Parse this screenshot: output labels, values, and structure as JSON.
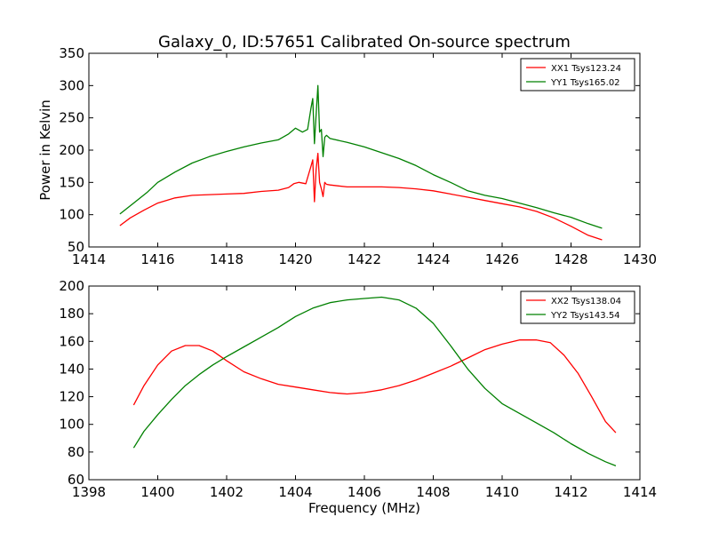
{
  "figure": {
    "title": "Galaxy_0, ID:57651 Calibrated On-source spectrum"
  },
  "chart_data": [
    {
      "type": "line",
      "title": "Galaxy_0, ID:57651 Calibrated On-source spectrum",
      "xlabel": "",
      "ylabel": "Power in Kelvin",
      "xlim": [
        1414,
        1430
      ],
      "ylim": [
        50,
        350
      ],
      "xticks": [
        1414,
        1416,
        1418,
        1420,
        1422,
        1424,
        1426,
        1428,
        1430
      ],
      "yticks": [
        50,
        100,
        150,
        200,
        250,
        300,
        350
      ],
      "legend": "top-right",
      "series": [
        {
          "name": "XX1 Tsys123.24",
          "color": "#ff0000",
          "x": [
            1414.9,
            1415.2,
            1415.6,
            1416.0,
            1416.5,
            1417.0,
            1417.5,
            1418.0,
            1418.5,
            1419.0,
            1419.5,
            1419.8,
            1419.95,
            1420.1,
            1420.3,
            1420.45,
            1420.5,
            1420.55,
            1420.6,
            1420.65,
            1420.7,
            1420.75,
            1420.8,
            1420.85,
            1420.9,
            1421.0,
            1421.5,
            1422.0,
            1422.5,
            1423.0,
            1423.5,
            1424.0,
            1424.5,
            1425.0,
            1425.5,
            1426.0,
            1426.5,
            1427.0,
            1427.5,
            1428.0,
            1428.5,
            1428.9
          ],
          "y": [
            83,
            95,
            107,
            118,
            126,
            130,
            131,
            132,
            133,
            136,
            138,
            142,
            148,
            150,
            148,
            175,
            185,
            120,
            170,
            195,
            150,
            140,
            128,
            150,
            147,
            146,
            143,
            143,
            143,
            142,
            140,
            137,
            132,
            127,
            122,
            117,
            112,
            105,
            95,
            82,
            68,
            61
          ]
        },
        {
          "name": "YY1 Tsys165.02",
          "color": "#008000",
          "x": [
            1414.9,
            1415.3,
            1415.7,
            1416.0,
            1416.5,
            1417.0,
            1417.5,
            1418.0,
            1418.5,
            1419.0,
            1419.5,
            1419.8,
            1420.0,
            1420.2,
            1420.35,
            1420.45,
            1420.5,
            1420.55,
            1420.6,
            1420.65,
            1420.7,
            1420.75,
            1420.8,
            1420.85,
            1420.9,
            1421.0,
            1421.5,
            1422.0,
            1422.5,
            1423.0,
            1423.5,
            1424.0,
            1424.5,
            1425.0,
            1425.5,
            1426.0,
            1426.5,
            1427.0,
            1427.5,
            1428.0,
            1428.5,
            1428.9
          ],
          "y": [
            101,
            118,
            135,
            150,
            166,
            180,
            190,
            198,
            205,
            211,
            216,
            225,
            234,
            228,
            232,
            265,
            280,
            210,
            255,
            300,
            228,
            232,
            190,
            220,
            223,
            218,
            212,
            205,
            196,
            187,
            176,
            162,
            150,
            137,
            130,
            125,
            118,
            111,
            103,
            96,
            86,
            79
          ]
        }
      ]
    },
    {
      "type": "line",
      "title": "",
      "xlabel": "Frequency (MHz)",
      "ylabel": "",
      "xlim": [
        1398,
        1414
      ],
      "ylim": [
        60,
        200
      ],
      "xticks": [
        1398,
        1400,
        1402,
        1404,
        1406,
        1408,
        1410,
        1412,
        1414
      ],
      "yticks": [
        60,
        80,
        100,
        120,
        140,
        160,
        180,
        200
      ],
      "legend": "top-right",
      "series": [
        {
          "name": "XX2 Tsys138.04",
          "color": "#ff0000",
          "x": [
            1399.3,
            1399.6,
            1400.0,
            1400.4,
            1400.8,
            1401.2,
            1401.6,
            1402.0,
            1402.5,
            1403.0,
            1403.5,
            1404.0,
            1404.5,
            1405.0,
            1405.5,
            1406.0,
            1406.5,
            1407.0,
            1407.5,
            1408.0,
            1408.5,
            1409.0,
            1409.5,
            1410.0,
            1410.5,
            1411.0,
            1411.4,
            1411.8,
            1412.2,
            1412.6,
            1413.0,
            1413.3
          ],
          "y": [
            114,
            128,
            143,
            153,
            157,
            157,
            153,
            146,
            138,
            133,
            129,
            127,
            125,
            123,
            122,
            123,
            125,
            128,
            132,
            137,
            142,
            148,
            154,
            158,
            161,
            161,
            159,
            150,
            137,
            120,
            102,
            94
          ]
        },
        {
          "name": "YY2 Tsys143.54",
          "color": "#008000",
          "x": [
            1399.3,
            1399.6,
            1400.0,
            1400.4,
            1400.8,
            1401.2,
            1401.6,
            1402.0,
            1402.5,
            1403.0,
            1403.5,
            1404.0,
            1404.5,
            1405.0,
            1405.5,
            1406.0,
            1406.5,
            1407.0,
            1407.5,
            1408.0,
            1408.5,
            1409.0,
            1409.5,
            1410.0,
            1410.5,
            1411.0,
            1411.5,
            1412.0,
            1412.5,
            1413.0,
            1413.3
          ],
          "y": [
            83,
            95,
            107,
            118,
            128,
            136,
            143,
            149,
            156,
            163,
            170,
            178,
            184,
            188,
            190,
            191,
            192,
            190,
            184,
            173,
            157,
            140,
            126,
            115,
            108,
            101,
            94,
            86,
            79,
            73,
            70
          ]
        }
      ]
    }
  ]
}
